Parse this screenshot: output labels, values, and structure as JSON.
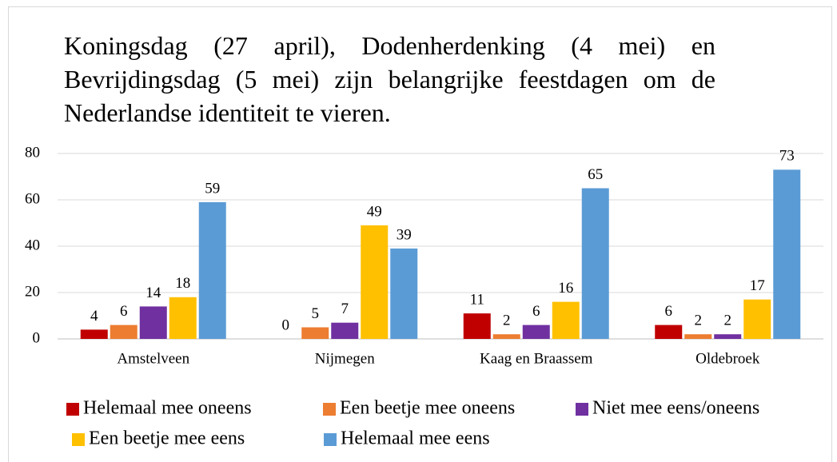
{
  "chart_data": {
    "type": "bar",
    "title": "Koningsdag (27 april), Dodenherdenking (4 mei) en Bevrijdingsdag (5 mei) zijn belangrijke feestdagen om de Nederlandse identiteit te vieren.",
    "categories": [
      "Amstelveen",
      "Nijmegen",
      "Kaag en Braassem",
      "Oldebroek"
    ],
    "series": [
      {
        "name": "Helemaal mee oneens",
        "color": "#c00000",
        "values": [
          4,
          0,
          11,
          6
        ]
      },
      {
        "name": "Een beetje mee oneens",
        "color": "#ed7d31",
        "values": [
          6,
          5,
          2,
          2
        ]
      },
      {
        "name": "Niet mee eens/oneens",
        "color": "#7030a0",
        "values": [
          14,
          7,
          6,
          2
        ]
      },
      {
        "name": "Een beetje mee eens",
        "color": "#ffc000",
        "values": [
          18,
          49,
          16,
          17
        ]
      },
      {
        "name": "Helemaal mee eens",
        "color": "#5b9bd5",
        "values": [
          59,
          39,
          65,
          73
        ]
      }
    ],
    "ylim": [
      0,
      80
    ],
    "yticks": [
      0,
      20,
      40,
      60,
      80
    ],
    "grid": true,
    "legend": "bottom"
  }
}
